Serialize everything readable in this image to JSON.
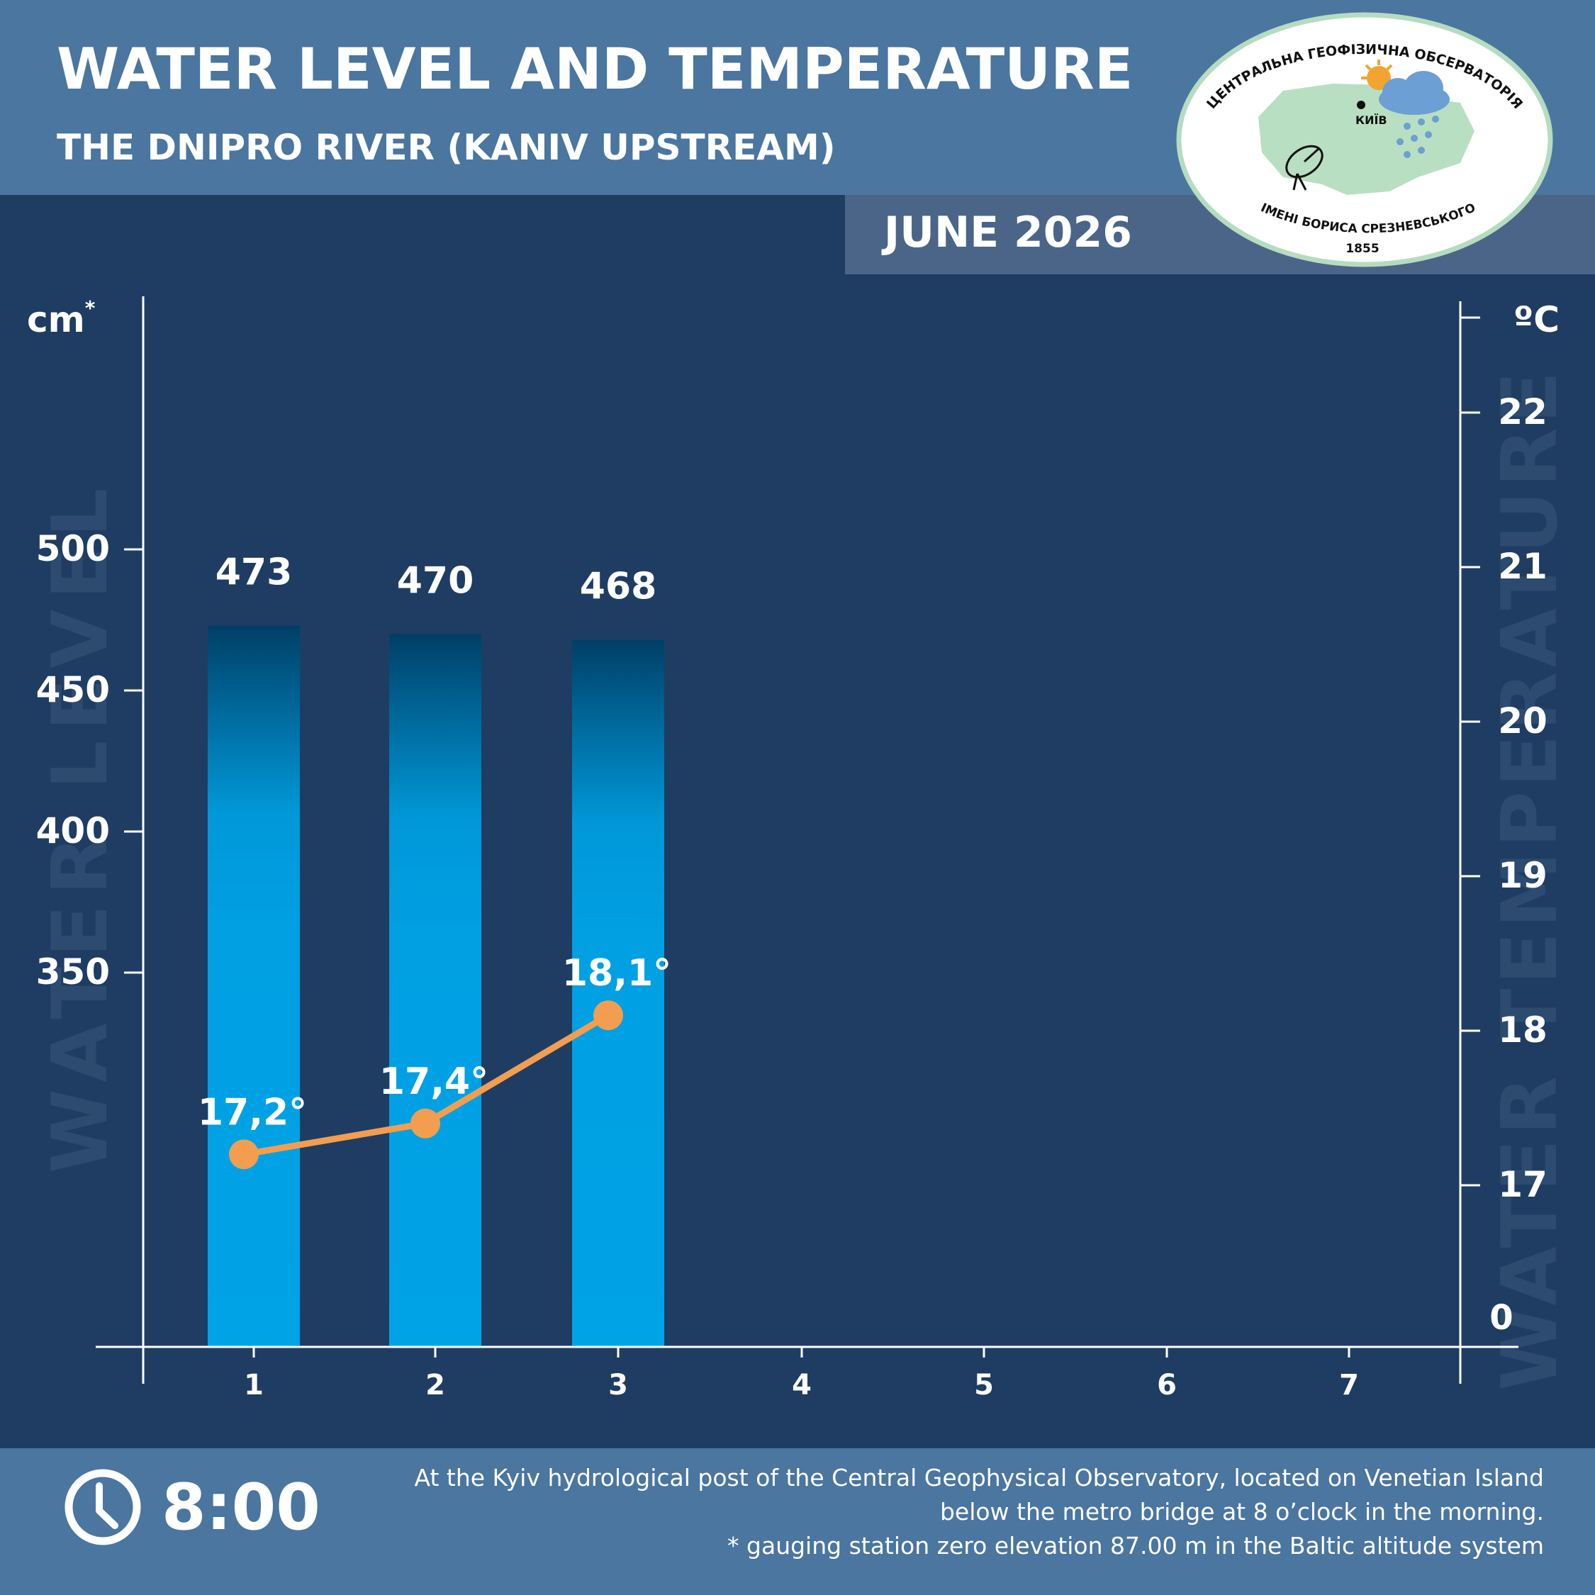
{
  "header": {
    "title": "WATER LEVEL AND TEMPERATURE",
    "subtitle": "THE DNIPRO RIVER (KANIV UPSTREAM)",
    "period": "JUNE 2026"
  },
  "logo": {
    "top_text": "ЦЕНТРАЛЬНА ГЕОФІЗИЧНА ОБСЕРВАТОРІЯ",
    "city": "КИЇВ",
    "bottom_text": "ІМЕНІ БОРИСА СРЕЗНЕВСЬКОГО",
    "year": "1855"
  },
  "footer": {
    "time": "8:00",
    "note_line1": "At the Kyiv hydrological post of the Central Geophysical Observatory, located on Venetian Island",
    "note_line2": "below the metro bridge  at 8 o’clock in the morning.",
    "note_line3": "* gauging station zero elevation 87.00 m in the Baltic altitude system"
  },
  "colors": {
    "background": "#1f3d63",
    "header_band": "#4a76a0",
    "bar_top": "#00476f",
    "bar_body": "#00a0e3",
    "temperature_line": "#f39d50",
    "text": "#ffffff"
  },
  "chart_data": {
    "type": "bar",
    "categories": [
      "1",
      "2",
      "3",
      "4",
      "5",
      "6",
      "7"
    ],
    "series": [
      {
        "name": "WATER LEVEL",
        "type": "bar",
        "axis": "left",
        "values": [
          473,
          470,
          468,
          null,
          null,
          null,
          null
        ],
        "labels": [
          "473",
          "470",
          "468"
        ]
      },
      {
        "name": "WATER TEMPERATURE",
        "type": "line",
        "axis": "right",
        "values": [
          17.2,
          17.4,
          18.1,
          null,
          null,
          null,
          null
        ],
        "labels": [
          "17,2°",
          "17,4°",
          "18,1°"
        ]
      }
    ],
    "left_axis": {
      "unit": "cm",
      "unit_mark": "*",
      "ticks": [
        350,
        400,
        450,
        500
      ],
      "tick_labels": [
        "350",
        "400",
        "450",
        "500"
      ],
      "watermark": "WATER LEVEL"
    },
    "right_axis": {
      "unit": "ºC",
      "ticks": [
        17,
        18,
        19,
        20,
        21,
        22
      ],
      "tick_labels": [
        "17",
        "18",
        "19",
        "20",
        "21",
        "22"
      ],
      "break_label": "0",
      "watermark": "WATER TEMPERATURE"
    },
    "grid": false,
    "legend": "none"
  }
}
